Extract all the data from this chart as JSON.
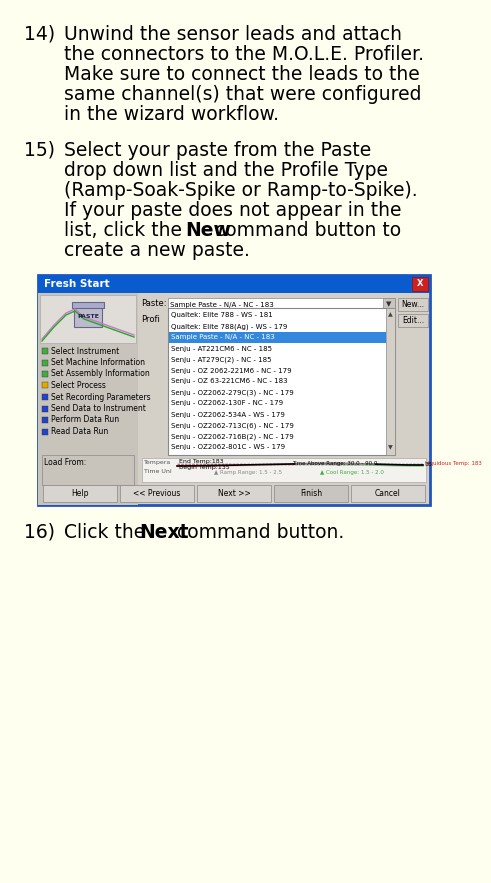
{
  "bg_color": "#fffff0",
  "text_color": "#000000",
  "body_font_size": 13.5,
  "item14_number": "14)",
  "item14_lines": [
    "Unwind the sensor leads and attach",
    "the connectors to the M.O.L.E. Profiler.",
    "Make sure to connect the leads to the",
    "same channel(s) that were configured",
    "in the wizard workflow."
  ],
  "item15_number": "15)",
  "item15_lines_normal": [
    "Select your paste from the Paste",
    "drop down list and the Profile Type",
    "(Ramp-Soak-Spike or Ramp-to-Spike).",
    "If your paste does not appear in the"
  ],
  "item15_line_mixed1_pre": "list, click the ",
  "item15_line_mixed1_bold": "New",
  "item15_line_mixed1_post": " command button to",
  "item15_line_last": "create a new paste.",
  "item16_number": "16)",
  "item16_pre": "Click the ",
  "item16_bold": "Next",
  "item16_post": " command button.",
  "dlg_title": "Fresh Start",
  "dlg_bg": "#d4d0c8",
  "dlg_title_bg": "#0a5bce",
  "dlg_border": "#2255bb",
  "paste_label": "Paste:",
  "paste_value": "Sample Paste - N/A - NC - 183",
  "profi_label": "Profi",
  "dropdown_items": [
    "Qualtek: Elite 788 - WS - 181",
    "Qualtek: Elite 788(Ag) - WS - 179",
    "Sample Paste - N/A - NC - 183",
    "Senju - AT221CM6 - NC - 185",
    "Senju - AT279C(2) - NC - 185",
    "Senju - OZ 2062-221M6 - NC - 179",
    "Senju - OZ 63-221CM6 - NC - 183",
    "Senju - OZ2062-279C(3) - NC - 179",
    "Senju - OZ2062-130F - NC - 179",
    "Senju - OZ2062-534A - WS - 179",
    "Senju - OZ2062-713C(6) - NC - 179",
    "Senju - OZ2062-716B(2) - NC - 179",
    "Senju - OZ2062-801C - WS - 179"
  ],
  "selected_idx": 2,
  "left_menu_items": [
    "Select Instrument",
    "Set Machine Information",
    "Set Assembly Information",
    "Select Process",
    "Set Recording Parameters",
    "Send Data to Instrument",
    "Perform Data Run",
    "Read Data Run"
  ],
  "left_menu_colors": [
    "#44aa44",
    "#44aa44",
    "#44aa44",
    "#ddaa00",
    "#2244cc",
    "#2244cc",
    "#2244cc",
    "#2244cc"
  ],
  "btn_labels": [
    "Help",
    "<< Previous",
    "Next >>",
    "Finish",
    "Cancel"
  ],
  "begin_temp": "Begin Temp:135",
  "end_temp": "End Temp:183",
  "liquidous": "Liquidous Temp: 183",
  "time_above": "Time Above Range: 30.0 - 90.0",
  "ramp_range": "Ramp Range: 1.5 - 2.5",
  "cool_range": "Cool Range: 1.5 - 2.0",
  "load_from": "Load From:"
}
